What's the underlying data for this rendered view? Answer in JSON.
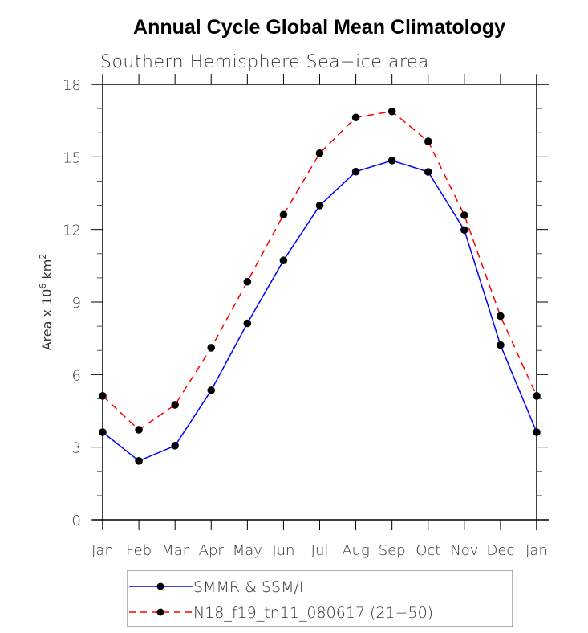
{
  "chart_data": {
    "type": "line",
    "title": "Annual Cycle Global Mean Climatology",
    "subtitle": "Southern Hemisphere Sea−ice area",
    "xlabel": "",
    "ylabel": "Area x 10",
    "ylabel_sup": "6",
    "ylabel_unit": " km",
    "ylabel_unit_sup": "2",
    "categories": [
      "Jan",
      "Feb",
      "Mar",
      "Apr",
      "May",
      "Jun",
      "Jul",
      "Aug",
      "Sep",
      "Oct",
      "Nov",
      "Dec",
      "Jan"
    ],
    "ylim": [
      0,
      18
    ],
    "yticks": [
      0,
      3,
      6,
      9,
      12,
      15,
      18
    ],
    "yminor_step": 1,
    "grid": false,
    "legend_position": "bottom-center",
    "series": [
      {
        "name": "SMMR & SSM/I",
        "color": "#0000ff",
        "dash": "solid",
        "marker": "filled-circle",
        "values": [
          3.62,
          2.43,
          3.06,
          5.35,
          8.12,
          10.72,
          12.99,
          14.39,
          14.85,
          14.38,
          11.98,
          7.22,
          3.62
        ]
      },
      {
        "name": "N18_f19_tn11_080617 (21−50)",
        "color": "#ff0000",
        "dash": "dashed",
        "marker": "filled-circle",
        "values": [
          5.12,
          3.72,
          4.75,
          7.11,
          9.84,
          12.61,
          15.15,
          16.63,
          16.88,
          15.64,
          12.59,
          8.42,
          5.12
        ]
      }
    ]
  }
}
